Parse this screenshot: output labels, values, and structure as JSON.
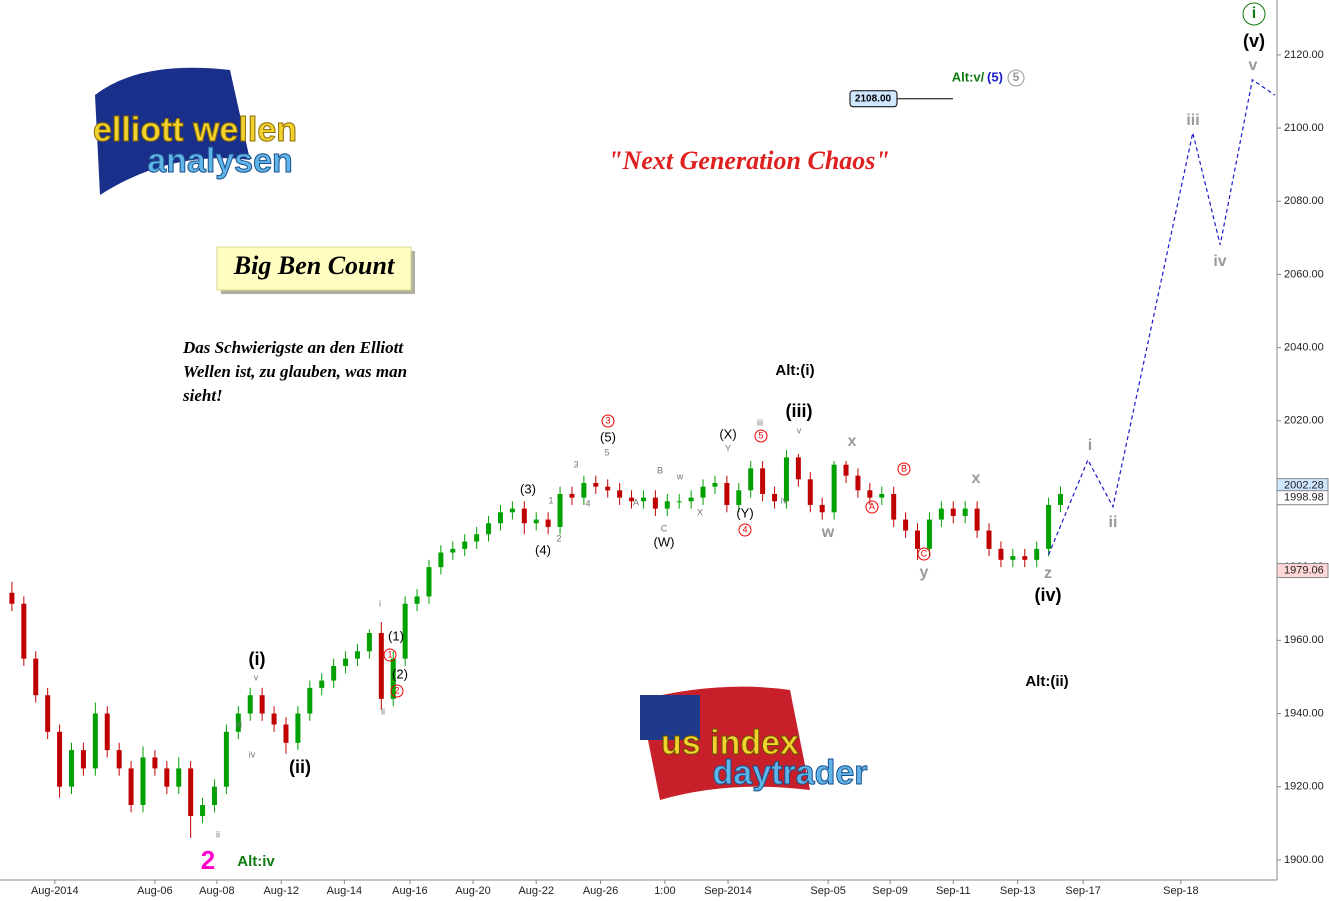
{
  "chart_data": {
    "type": "candlestick",
    "title": "\"Next Generation Chaos\"",
    "label": "Big Ben Count",
    "quote": [
      "Das Schwierigste an den Elliott",
      "Wellen ist, zu glauben, was man",
      "sieht!"
    ],
    "logos": [
      "elliott wellen",
      "analysen",
      "us index",
      "daytrader"
    ],
    "up_color": "#00a000",
    "down_color": "#c00000",
    "x": [
      1,
      2,
      3,
      4,
      5,
      6,
      7,
      8,
      9,
      10,
      11,
      12,
      13,
      14,
      15,
      16,
      17,
      18,
      19,
      20,
      21,
      22,
      23,
      24,
      25,
      26,
      27,
      28,
      29,
      30,
      31,
      32,
      33,
      34,
      35,
      36,
      37,
      38,
      39,
      40,
      41,
      42,
      43,
      44,
      45,
      46,
      47,
      48,
      49,
      50,
      51,
      52,
      53,
      54,
      55,
      56,
      57,
      58,
      59,
      60,
      61,
      62,
      63,
      64,
      65,
      66,
      67,
      68,
      69,
      70,
      71,
      72,
      73,
      74,
      75,
      76,
      77,
      78,
      79,
      80,
      81,
      82,
      83,
      84,
      85,
      86,
      87,
      88,
      89
    ],
    "open": [
      1973,
      1970,
      1955,
      1945,
      1935,
      1920,
      1930,
      1925,
      1940,
      1930,
      1925,
      1915,
      1928,
      1925,
      1920,
      1925,
      1912,
      1915,
      1920,
      1935,
      1940,
      1945,
      1940,
      1937,
      1932,
      1940,
      1947,
      1949,
      1953,
      1955,
      1957,
      1962,
      1944,
      1955,
      1970,
      1972,
      1980,
      1984,
      1985,
      1987,
      1989,
      1992,
      1995,
      1996,
      1992,
      1993,
      1991,
      2000,
      1999,
      2003,
      2002,
      2001,
      1999,
      1998,
      1999,
      1996,
      1998,
      1998,
      1999,
      2002,
      2003,
      1997,
      2001,
      2007,
      2000,
      1998,
      2010,
      2004,
      1997,
      1995,
      2008,
      2005,
      2001,
      1999,
      2000,
      1993,
      1990,
      1985,
      1993,
      1996,
      1994,
      1996,
      1990,
      1985,
      1982,
      1983,
      1982,
      1985,
      1997
    ],
    "high": [
      1976,
      1972,
      1957,
      1947,
      1937,
      1932,
      1932,
      1943,
      1942,
      1932,
      1927,
      1931,
      1930,
      1927,
      1928,
      1927,
      1917,
      1922,
      1937,
      1942,
      1947,
      1947,
      1942,
      1939,
      1942,
      1949,
      1951,
      1955,
      1957,
      1959,
      1963,
      1965,
      1957,
      1972,
      1974,
      1982,
      1986,
      1987,
      1989,
      1991,
      1994,
      1997,
      1998,
      1998,
      1995,
      1995,
      2002,
      2002,
      2005,
      2005,
      2004,
      2003,
      2001,
      2001,
      2001,
      2000,
      2000,
      2001,
      2004,
      2005,
      2005,
      2003,
      2009,
      2009,
      2002,
      2012,
      2011,
      2006,
      1999,
      2009,
      2009,
      2007,
      2003,
      2002,
      2002,
      1995,
      1992,
      1995,
      1998,
      1998,
      1998,
      1998,
      1992,
      1987,
      1985,
      1985,
      1987,
      1999,
      2002
    ],
    "low": [
      1968,
      1953,
      1943,
      1933,
      1917,
      1918,
      1923,
      1923,
      1928,
      1923,
      1913,
      1913,
      1923,
      1918,
      1918,
      1906,
      1910,
      1913,
      1918,
      1933,
      1938,
      1938,
      1935,
      1929,
      1930,
      1938,
      1945,
      1947,
      1951,
      1953,
      1955,
      1941,
      1942,
      1953,
      1968,
      1970,
      1978,
      1982,
      1983,
      1985,
      1987,
      1990,
      1993,
      1989,
      1990,
      1989,
      1989,
      1997,
      1997,
      2000,
      1999,
      1997,
      1996,
      1996,
      1994,
      1994,
      1996,
      1996,
      1997,
      2000,
      1995,
      1995,
      1999,
      1998,
      1996,
      1996,
      2002,
      1995,
      1993,
      1993,
      2003,
      1999,
      1997,
      1997,
      1991,
      1988,
      1982,
      1983,
      1991,
      1992,
      1992,
      1988,
      1983,
      1980,
      1980,
      1980,
      1980,
      1983,
      1995
    ],
    "close": [
      1970,
      1955,
      1945,
      1935,
      1920,
      1930,
      1925,
      1940,
      1930,
      1925,
      1915,
      1928,
      1925,
      1920,
      1925,
      1912,
      1915,
      1920,
      1935,
      1940,
      1945,
      1940,
      1937,
      1932,
      1940,
      1947,
      1949,
      1953,
      1955,
      1957,
      1962,
      1944,
      1955,
      1970,
      1972,
      1980,
      1984,
      1985,
      1987,
      1989,
      1992,
      1995,
      1996,
      1992,
      1993,
      1991,
      2000,
      1999,
      2003,
      2002,
      2001,
      1999,
      1998,
      1999,
      1996,
      1998,
      1998,
      1999,
      2002,
      2003,
      1997,
      2001,
      2007,
      2000,
      1998,
      2010,
      2004,
      1997,
      1995,
      2008,
      2005,
      2001,
      1999,
      2000,
      1993,
      1990,
      1985,
      1993,
      1996,
      1994,
      1996,
      1990,
      1985,
      1982,
      1983,
      1982,
      1985,
      1997,
      2000
    ],
    "projection": {
      "color": "#1a1acc",
      "x": [
        88.0,
        91.3,
        93.4,
        100.1,
        102.4,
        105.1,
        107
      ],
      "values": [
        1983.4,
        2009.3,
        1996.5,
        2098.7,
        2068.1,
        2113.2,
        2109
      ]
    },
    "price_labels": [
      2002.28,
      1998.98,
      1979.06
    ],
    "price_label_colors": [
      "#cfe6ff",
      "#ffffff",
      "#ffd6d6"
    ],
    "target": {
      "value": 2108,
      "label": "2108.00"
    },
    "xlim": [
      0,
      107
    ],
    "ylim": [
      1894.5,
      2135
    ],
    "xticks": [
      {
        "value": 4.6,
        "label": "Aug-2014"
      },
      {
        "value": 13,
        "label": "Aug-06"
      },
      {
        "value": 18.2,
        "label": "Aug-08"
      },
      {
        "value": 23.6,
        "label": "Aug-12"
      },
      {
        "value": 28.9,
        "label": "Aug-14"
      },
      {
        "value": 34.4,
        "label": "Aug-16"
      },
      {
        "value": 39.7,
        "label": "Aug-20"
      },
      {
        "value": 45,
        "label": "Aug-22"
      },
      {
        "value": 50.4,
        "label": "Aug-26"
      },
      {
        "value": 55.8,
        "label": "1:00"
      },
      {
        "value": 61.1,
        "label": "Sep-2014"
      },
      {
        "value": 69.5,
        "label": "Sep-05"
      },
      {
        "value": 74.7,
        "label": "Sep-09"
      },
      {
        "value": 80,
        "label": "Sep-11"
      },
      {
        "value": 85.4,
        "label": "Sep-13"
      },
      {
        "value": 90.9,
        "label": "Sep-17"
      },
      {
        "value": 99.1,
        "label": "Sep-18"
      }
    ],
    "yticks": [
      {
        "value": 1900,
        "label": "1900.00"
      },
      {
        "value": 1920,
        "label": "1920.00"
      },
      {
        "value": 1940,
        "label": "1940.00"
      },
      {
        "value": 1960,
        "label": "1960.00"
      },
      {
        "value": 1980,
        "label": "1980.00"
      },
      {
        "value": 2000,
        "label": "2000.00"
      },
      {
        "value": 2020,
        "label": "2020.00"
      },
      {
        "value": 2040,
        "label": "2040.00"
      },
      {
        "value": 2060,
        "label": "2060.00"
      },
      {
        "value": 2080,
        "label": "2080.00"
      },
      {
        "value": 2100,
        "label": "2100.00"
      },
      {
        "value": 2120,
        "label": "2120.00"
      }
    ],
    "annotations": [
      "i",
      "(v)",
      "v",
      "iii",
      "iv",
      "i",
      "ii",
      "x",
      "z",
      "(iv)",
      "Alt:(ii)",
      "Alt:(i)",
      "(iii)",
      "x",
      "w",
      "y",
      "(i)",
      "(ii)",
      "Alt:iv",
      "2",
      "(3)",
      "(4)",
      "(5)",
      "(W)",
      "(X)",
      "(Y)",
      "(1)",
      "(2)",
      "3",
      "5",
      "4",
      "B",
      "A",
      "C",
      "1",
      "2",
      "iii",
      "v",
      "iv",
      "1",
      "2",
      "3",
      "4",
      "5",
      "A",
      "B",
      "C",
      "w",
      "X",
      "Y",
      "i",
      "ii",
      "v",
      "iii",
      "iv",
      "i",
      "ii",
      "Alt:v/",
      "(5)",
      "5"
    ]
  }
}
